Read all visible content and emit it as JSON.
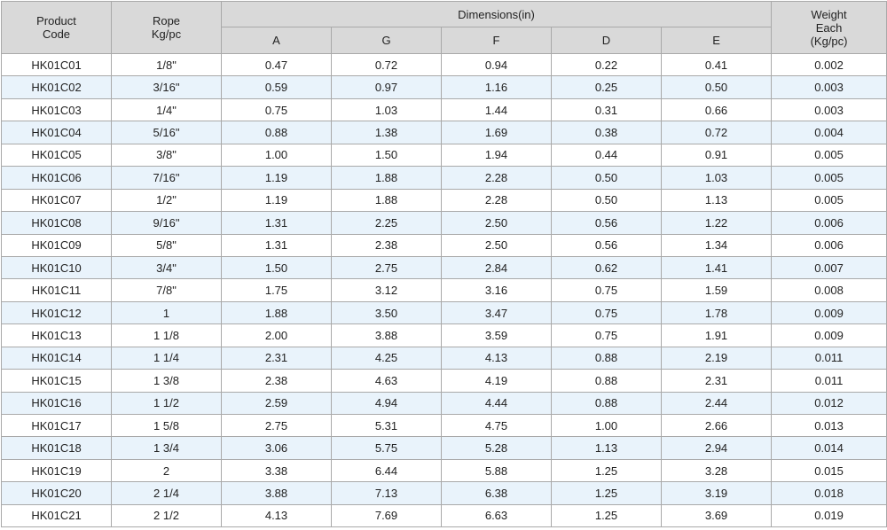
{
  "header": {
    "product_code": "Product\nCode",
    "rope": "Rope\nKg/pc",
    "dimensions": "Dimensions(in)",
    "a": "A",
    "g": "G",
    "f": "F",
    "d": "D",
    "e": "E",
    "weight": "Weight\nEach\n(Kg/pc)"
  },
  "rows": [
    {
      "code": "HK01C01",
      "rope": "1/8\"",
      "a": "0.47",
      "g": "0.72",
      "f": "0.94",
      "d": "0.22",
      "e": "0.41",
      "weight": "0.002"
    },
    {
      "code": "HK01C02",
      "rope": "3/16\"",
      "a": "0.59",
      "g": "0.97",
      "f": "1.16",
      "d": "0.25",
      "e": "0.50",
      "weight": "0.003"
    },
    {
      "code": "HK01C03",
      "rope": "1/4\"",
      "a": "0.75",
      "g": "1.03",
      "f": "1.44",
      "d": "0.31",
      "e": "0.66",
      "weight": "0.003"
    },
    {
      "code": "HK01C04",
      "rope": "5/16\"",
      "a": "0.88",
      "g": "1.38",
      "f": "1.69",
      "d": "0.38",
      "e": "0.72",
      "weight": "0.004"
    },
    {
      "code": "HK01C05",
      "rope": "3/8\"",
      "a": "1.00",
      "g": "1.50",
      "f": "1.94",
      "d": "0.44",
      "e": "0.91",
      "weight": "0.005"
    },
    {
      "code": "HK01C06",
      "rope": "7/16\"",
      "a": "1.19",
      "g": "1.88",
      "f": "2.28",
      "d": "0.50",
      "e": "1.03",
      "weight": "0.005"
    },
    {
      "code": "HK01C07",
      "rope": "1/2\"",
      "a": "1.19",
      "g": "1.88",
      "f": "2.28",
      "d": "0.50",
      "e": "1.13",
      "weight": "0.005"
    },
    {
      "code": "HK01C08",
      "rope": "9/16\"",
      "a": "1.31",
      "g": "2.25",
      "f": "2.50",
      "d": "0.56",
      "e": "1.22",
      "weight": "0.006"
    },
    {
      "code": "HK01C09",
      "rope": "5/8\"",
      "a": "1.31",
      "g": "2.38",
      "f": "2.50",
      "d": "0.56",
      "e": "1.34",
      "weight": "0.006"
    },
    {
      "code": "HK01C10",
      "rope": "3/4\"",
      "a": "1.50",
      "g": "2.75",
      "f": "2.84",
      "d": "0.62",
      "e": "1.41",
      "weight": "0.007"
    },
    {
      "code": "HK01C11",
      "rope": "7/8\"",
      "a": "1.75",
      "g": "3.12",
      "f": "3.16",
      "d": "0.75",
      "e": "1.59",
      "weight": "0.008"
    },
    {
      "code": "HK01C12",
      "rope": "1",
      "a": "1.88",
      "g": "3.50",
      "f": "3.47",
      "d": "0.75",
      "e": "1.78",
      "weight": "0.009"
    },
    {
      "code": "HK01C13",
      "rope": "1 1/8",
      "a": "2.00",
      "g": "3.88",
      "f": "3.59",
      "d": "0.75",
      "e": "1.91",
      "weight": "0.009"
    },
    {
      "code": "HK01C14",
      "rope": "1 1/4",
      "a": "2.31",
      "g": "4.25",
      "f": "4.13",
      "d": "0.88",
      "e": "2.19",
      "weight": "0.011"
    },
    {
      "code": "HK01C15",
      "rope": "1 3/8",
      "a": "2.38",
      "g": "4.63",
      "f": "4.19",
      "d": "0.88",
      "e": "2.31",
      "weight": "0.011"
    },
    {
      "code": "HK01C16",
      "rope": "1 1/2",
      "a": "2.59",
      "g": "4.94",
      "f": "4.44",
      "d": "0.88",
      "e": "2.44",
      "weight": "0.012"
    },
    {
      "code": "HK01C17",
      "rope": "1 5/8",
      "a": "2.75",
      "g": "5.31",
      "f": "4.75",
      "d": "1.00",
      "e": "2.66",
      "weight": "0.013"
    },
    {
      "code": "HK01C18",
      "rope": "1 3/4",
      "a": "3.06",
      "g": "5.75",
      "f": "5.28",
      "d": "1.13",
      "e": "2.94",
      "weight": "0.014"
    },
    {
      "code": "HK01C19",
      "rope": "2",
      "a": "3.38",
      "g": "6.44",
      "f": "5.88",
      "d": "1.25",
      "e": "3.28",
      "weight": "0.015"
    },
    {
      "code": "HK01C20",
      "rope": "2 1/4",
      "a": "3.88",
      "g": "7.13",
      "f": "6.38",
      "d": "1.25",
      "e": "3.19",
      "weight": "0.018"
    },
    {
      "code": "HK01C21",
      "rope": "2 1/2",
      "a": "4.13",
      "g": "7.69",
      "f": "6.63",
      "d": "1.25",
      "e": "3.69",
      "weight": "0.019"
    }
  ]
}
